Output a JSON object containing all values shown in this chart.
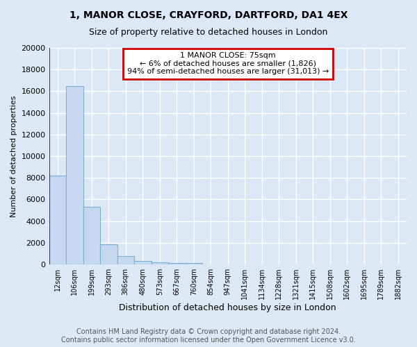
{
  "title": "1, MANOR CLOSE, CRAYFORD, DARTFORD, DA1 4EX",
  "subtitle": "Size of property relative to detached houses in London",
  "xlabel": "Distribution of detached houses by size in London",
  "ylabel": "Number of detached properties",
  "bar_labels": [
    "12sqm",
    "106sqm",
    "199sqm",
    "293sqm",
    "386sqm",
    "480sqm",
    "573sqm",
    "667sqm",
    "760sqm",
    "854sqm",
    "947sqm",
    "1041sqm",
    "1134sqm",
    "1228sqm",
    "1321sqm",
    "1415sqm",
    "1508sqm",
    "1602sqm",
    "1695sqm",
    "1789sqm",
    "1882sqm"
  ],
  "bar_values": [
    8200,
    16500,
    5350,
    1850,
    800,
    350,
    220,
    150,
    150,
    0,
    0,
    0,
    0,
    0,
    0,
    0,
    0,
    0,
    0,
    0,
    0
  ],
  "bar_color": "#c5d8f0",
  "bar_edge_color": "#7aafd4",
  "annotation_title": "1 MANOR CLOSE: 75sqm",
  "annotation_line1": "← 6% of detached houses are smaller (1,826)",
  "annotation_line2": "94% of semi-detached houses are larger (31,013) →",
  "annotation_box_color": "#ffffff",
  "annotation_border_color": "#cc0000",
  "vline_color": "#cc0000",
  "ylim": [
    0,
    20000
  ],
  "yticks": [
    0,
    2000,
    4000,
    6000,
    8000,
    10000,
    12000,
    14000,
    16000,
    18000,
    20000
  ],
  "background_color": "#dce8f5",
  "footer_line1": "Contains HM Land Registry data © Crown copyright and database right 2024.",
  "footer_line2": "Contains public sector information licensed under the Open Government Licence v3.0.",
  "title_fontsize": 10,
  "subtitle_fontsize": 9,
  "footer_fontsize": 7,
  "grid_color": "#ffffff",
  "ylabel_fontsize": 8,
  "xlabel_fontsize": 9
}
